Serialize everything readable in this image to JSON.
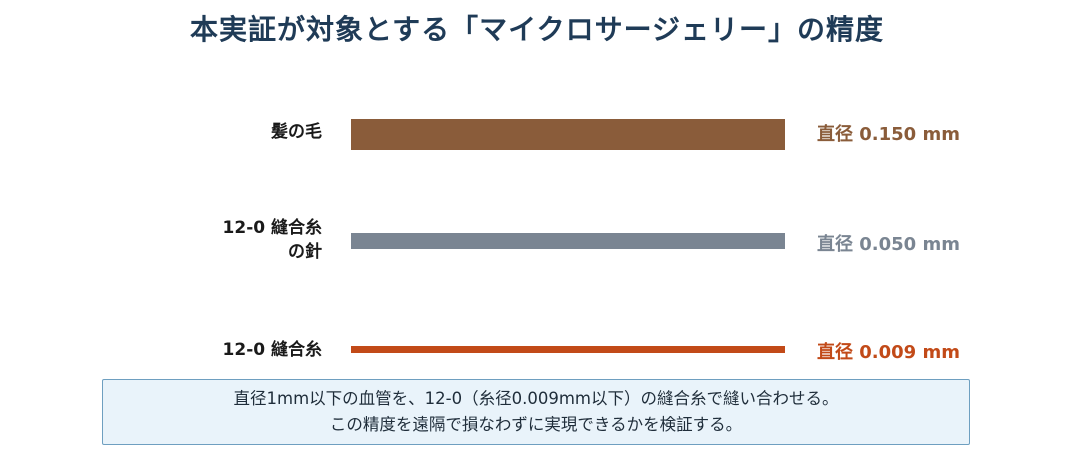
{
  "title": "本実証が対象とする「マイクロサージェリー」の精度",
  "rows": [
    {
      "label_lines": [
        "髪の毛"
      ],
      "value": "直径 0.150 mm",
      "diameter_mm": 0.15,
      "color": "#8a5c3a"
    },
    {
      "label_lines": [
        "12-0 縫合糸",
        "の針"
      ],
      "value": "直径 0.050 mm",
      "diameter_mm": 0.05,
      "color": "#7a8592"
    },
    {
      "label_lines": [
        "12-0 縫合糸"
      ],
      "value": "直径 0.009 mm",
      "diameter_mm": 0.009,
      "color": "#c24a18"
    }
  ],
  "note": {
    "line1": "直径1mm以下の血管を、12-0（糸径0.009mm以下）の縫合糸で縫い合わせる。",
    "line2": "この精度を遠隔で損なわずに実現できるかを検証する。"
  }
}
